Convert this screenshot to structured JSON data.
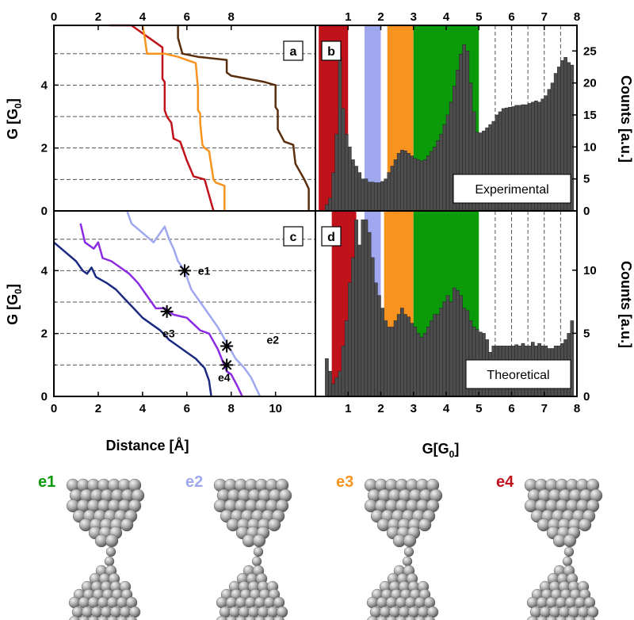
{
  "colors": {
    "red": "#c0121b",
    "orange": "#f7931e",
    "brown": "#5a2d0c",
    "violet": "#8a2be2",
    "lightblue": "#9fa7ef",
    "navy": "#1b2a80",
    "green": "#0a9a0a",
    "bar": "#4d4d4d"
  },
  "chart_data": [
    {
      "panel": "a",
      "type": "line",
      "xlabel": "",
      "ylabel": "G [G0]",
      "xlim": [
        0,
        11.8
      ],
      "ylim": [
        0,
        5.9
      ],
      "xticks_top": [
        0,
        2,
        4,
        6,
        8
      ],
      "yticks": [
        0,
        2,
        4
      ],
      "gridlines_y": [
        1,
        2,
        3,
        4,
        5
      ],
      "series": [
        {
          "color": "red",
          "x": [
            2.5,
            3.5,
            4.9,
            4.9,
            4.9,
            5.0,
            5.0,
            5.1,
            5.2,
            5.3,
            5.4,
            5.7,
            6.0,
            6.3,
            6.8,
            7.0,
            7.2
          ],
          "y": [
            5.9,
            5.9,
            5.2,
            4.9,
            4.2,
            4.1,
            3.2,
            3.0,
            2.9,
            2.8,
            2.3,
            2.2,
            1.6,
            1.1,
            1.0,
            0.5,
            0.0
          ]
        },
        {
          "color": "orange",
          "x": [
            4.0,
            4.1,
            4.2,
            5.0,
            5.6,
            6.4,
            6.5,
            6.5,
            6.6,
            6.6,
            6.6,
            6.7,
            6.8,
            7.0,
            7.2,
            7.3,
            7.7,
            7.7
          ],
          "y": [
            5.9,
            5.5,
            5.0,
            5.0,
            4.9,
            4.7,
            3.9,
            3.2,
            3.1,
            3.0,
            2.8,
            2.1,
            2.0,
            1.9,
            1.0,
            0.9,
            0.8,
            0.0
          ]
        },
        {
          "color": "brown",
          "x": [
            5.6,
            5.6,
            5.8,
            6.5,
            7.8,
            7.8,
            8.0,
            9.5,
            10.0,
            10.0,
            10.1,
            10.1,
            10.4,
            10.8,
            10.9,
            11.3,
            11.5,
            11.5
          ],
          "y": [
            5.9,
            5.5,
            5.0,
            4.9,
            4.8,
            4.4,
            4.3,
            4.1,
            4.0,
            3.3,
            3.2,
            2.6,
            2.2,
            2.1,
            1.5,
            1.0,
            0.7,
            0.0
          ]
        }
      ]
    },
    {
      "panel": "b",
      "type": "bar",
      "box_label": "Experimental",
      "ylabel": "Counts [a.u.]",
      "xlim": [
        0,
        8
      ],
      "ylim": [
        0,
        29
      ],
      "xticks_top": [
        1,
        2,
        3,
        4,
        5,
        6,
        7,
        8
      ],
      "yticks": [
        0,
        5,
        10,
        15,
        20,
        25
      ],
      "bands": [
        {
          "color": "red",
          "from": 0.1,
          "to": 1.0
        },
        {
          "color": "lightblue",
          "from": 1.5,
          "to": 2.0
        },
        {
          "color": "orange",
          "from": 2.2,
          "to": 3.0
        },
        {
          "color": "green",
          "from": 3.0,
          "to": 5.0
        }
      ],
      "dashed_x": [
        5.5,
        6,
        6.5,
        7,
        7.5
      ],
      "values": [
        1,
        2,
        6,
        12,
        24,
        16,
        12,
        10,
        8,
        7,
        6,
        5,
        5,
        4.5,
        4.5,
        4.4,
        4.4,
        4.6,
        5,
        6,
        7,
        8,
        9,
        9.5,
        9.4,
        9,
        8.6,
        8.2,
        8,
        7.8,
        8,
        8.6,
        9.3,
        10,
        11,
        12,
        13.5,
        15,
        17,
        19.5,
        22,
        24.5,
        26,
        25,
        20,
        15.5,
        12.3,
        12.2,
        12.5,
        13,
        13.5,
        14,
        15,
        15.5,
        16,
        16.1,
        16.2,
        16.3,
        16.5,
        16.5,
        16.6,
        16.6,
        16.8,
        17,
        17.2,
        17,
        17.5,
        18,
        19,
        20,
        21.5,
        22.5,
        23.5,
        24,
        23.2,
        22.8
      ],
      "bin_width": 0.1
    },
    {
      "panel": "c",
      "type": "line",
      "xlabel": "Distance [Å]",
      "ylabel": "G [G0]",
      "xlim": [
        0,
        11.8
      ],
      "ylim": [
        0,
        5.9
      ],
      "xticks": [
        0,
        2,
        4,
        6,
        8,
        10
      ],
      "yticks": [
        0,
        2,
        4
      ],
      "gridlines_y": [
        1,
        2,
        3,
        4,
        5
      ],
      "annotations": [
        {
          "label": "e1",
          "x": 6.5,
          "y": 4.0
        },
        {
          "label": "e2",
          "x": 9.6,
          "y": 1.8
        },
        {
          "label": "e3",
          "x": 4.9,
          "y": 2.0
        },
        {
          "label": "e4",
          "x": 7.4,
          "y": 0.6
        }
      ],
      "markers": [
        {
          "x": 5.9,
          "y": 4.0
        },
        {
          "x": 7.8,
          "y": 1.6
        },
        {
          "x": 7.8,
          "y": 1.0
        },
        {
          "x": 5.1,
          "y": 2.7
        }
      ],
      "series": [
        {
          "color": "lightblue",
          "x": [
            3.3,
            3.5,
            4.0,
            4.5,
            5.0,
            5.2,
            5.4,
            5.6,
            5.9,
            6.2,
            6.6,
            7.0,
            7.4,
            7.8,
            8.2,
            8.6,
            8.9,
            9.1,
            9.3
          ],
          "y": [
            5.9,
            5.5,
            5.2,
            4.9,
            5.4,
            5.0,
            4.7,
            4.3,
            4.0,
            3.4,
            3.0,
            2.6,
            2.2,
            1.7,
            1.2,
            0.9,
            0.6,
            0.3,
            0.0
          ]
        },
        {
          "color": "violet",
          "x": [
            1.2,
            1.4,
            1.8,
            2.0,
            2.2,
            2.6,
            3.0,
            3.4,
            3.8,
            4.2,
            4.6,
            5.0,
            5.4,
            6.0,
            6.6,
            7.0,
            7.4,
            7.8,
            8.0,
            8.3,
            8.5
          ],
          "y": [
            5.5,
            4.9,
            4.7,
            4.9,
            4.4,
            4.3,
            4.1,
            3.9,
            3.6,
            3.2,
            2.8,
            2.8,
            2.6,
            2.5,
            2.1,
            2.0,
            1.5,
            0.8,
            0.7,
            0.3,
            0.0
          ]
        },
        {
          "color": "navy",
          "x": [
            0.0,
            0.5,
            1.0,
            1.3,
            1.5,
            1.7,
            1.9,
            2.4,
            2.8,
            3.2,
            3.6,
            4.0,
            4.4,
            4.8,
            5.2,
            5.6,
            6.0,
            6.4,
            6.8,
            7.0,
            7.1
          ],
          "y": [
            4.9,
            4.6,
            4.3,
            4.0,
            3.9,
            4.1,
            3.8,
            3.6,
            3.4,
            3.1,
            2.8,
            2.5,
            2.3,
            2.1,
            1.8,
            1.6,
            1.4,
            1.2,
            0.9,
            0.5,
            0.0
          ]
        }
      ]
    },
    {
      "panel": "d",
      "type": "bar",
      "box_label": "Theoretical",
      "xlabel": "G[G0]",
      "ylabel": "Counts [a.u.]",
      "xlim": [
        0,
        8
      ],
      "ylim": [
        0,
        14.7
      ],
      "xticks": [
        1,
        2,
        3,
        4,
        5,
        6,
        7,
        8
      ],
      "yticks": [
        0,
        5,
        10
      ],
      "bands": [
        {
          "color": "red",
          "from": 0.5,
          "to": 1.25
        },
        {
          "color": "lightblue",
          "from": 1.5,
          "to": 2.0
        },
        {
          "color": "orange",
          "from": 2.1,
          "to": 3.0
        },
        {
          "color": "green",
          "from": 3.0,
          "to": 5.0
        }
      ],
      "dashed_x": [
        5.5,
        6,
        6.5,
        7,
        7.5
      ],
      "values": [
        3,
        2,
        1,
        1.5,
        2,
        4,
        6,
        9,
        11,
        14,
        12,
        14,
        14,
        13,
        11,
        9,
        8,
        7,
        6,
        5.5,
        5.5,
        6,
        6.5,
        7,
        6.5,
        6.3,
        5.8,
        5.5,
        5,
        4.7,
        5,
        5.5,
        6,
        6.5,
        6.5,
        7,
        7.5,
        8,
        7.5,
        8.6,
        8.4,
        8,
        7,
        6.8,
        6,
        5.5,
        5.3,
        5.1,
        5,
        4.5,
        3.5,
        4,
        4,
        4,
        4,
        4,
        4,
        4,
        4.1,
        4,
        4.2,
        4,
        4,
        4.3,
        4,
        4.2,
        4,
        4,
        3.8,
        3.8,
        4,
        4,
        4.2,
        4.5,
        5,
        6
      ],
      "bin_width": 0.1
    }
  ],
  "snapshots": [
    {
      "label": "e1",
      "color": "green"
    },
    {
      "label": "e2",
      "color": "lightblue"
    },
    {
      "label": "e3",
      "color": "orange"
    },
    {
      "label": "e4",
      "color": "red"
    }
  ],
  "text": {
    "xlabel_left": "Distance [Å]",
    "xlabel_right": "G[G",
    "xlabel_right_sub": "0",
    "xlabel_right_end": "]",
    "ylabel_left": "G [G",
    "ylabel_left_sub": "0",
    "ylabel_left_end": "]",
    "ylabel_right": "Counts [a.u.]"
  }
}
